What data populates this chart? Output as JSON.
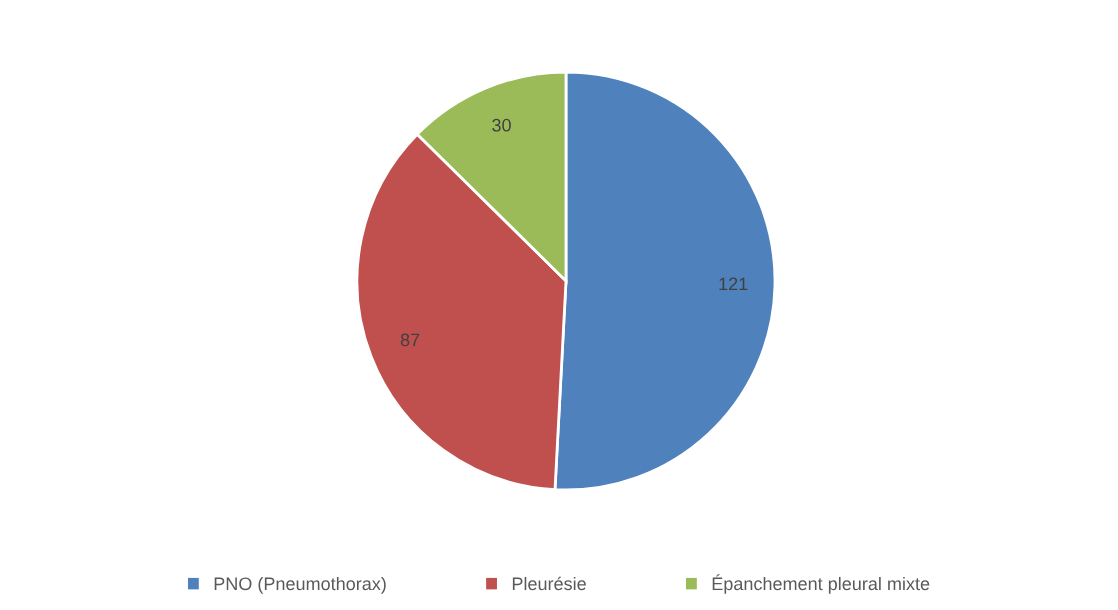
{
  "chart_data": {
    "type": "pie",
    "categories": [
      "PNO (Pneumothorax)",
      "Pleurésie",
      "Épanchement pleural mixte"
    ],
    "values": [
      121,
      87,
      30
    ],
    "colors": [
      "#4f81bd",
      "#c0504d",
      "#9bbb59"
    ],
    "data_labels": true,
    "legend": "bottom"
  }
}
